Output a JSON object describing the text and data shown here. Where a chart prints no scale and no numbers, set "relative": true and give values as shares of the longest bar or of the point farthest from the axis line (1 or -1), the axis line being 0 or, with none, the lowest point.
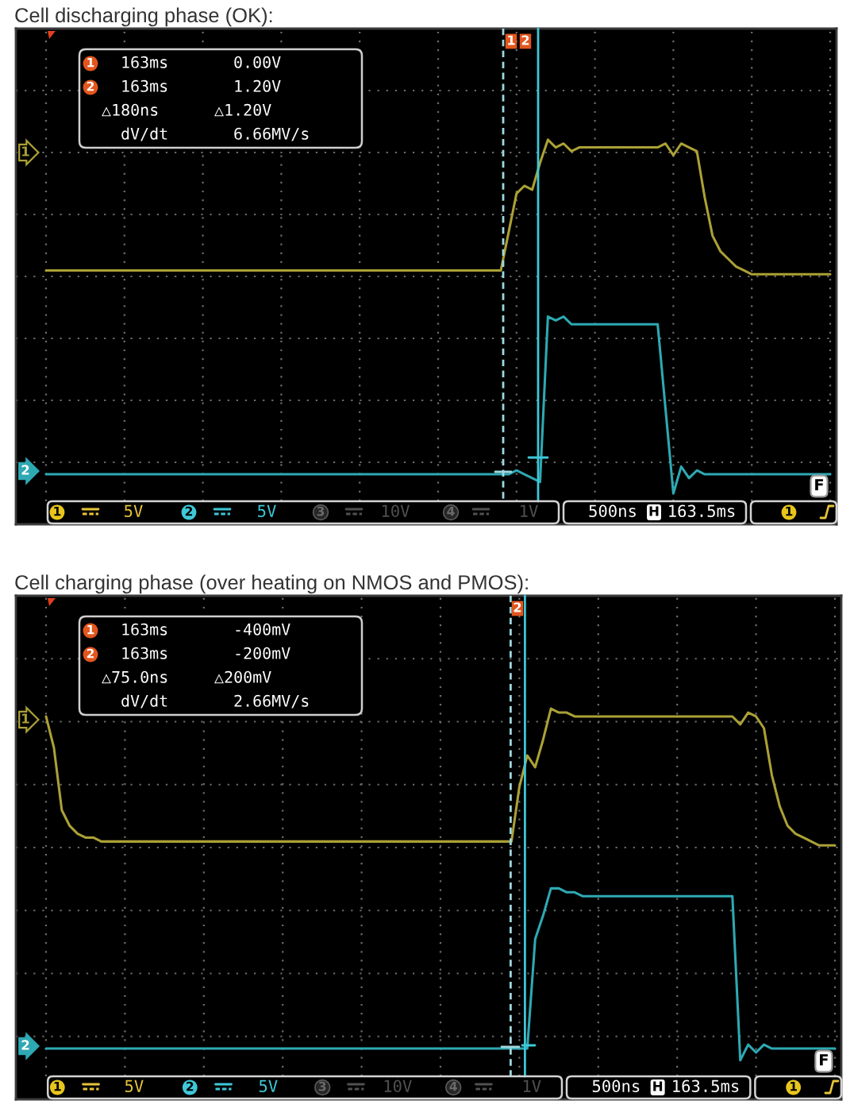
{
  "chart_data": [
    {
      "type": "line",
      "title": "Cell discharging phase (OK):",
      "relative": true,
      "grid": true,
      "categories": [
        null,
        null,
        null,
        null,
        null,
        null,
        null,
        null,
        null,
        null,
        null,
        null,
        null,
        null,
        null,
        null,
        null,
        null,
        null,
        null,
        null,
        null,
        null,
        null,
        null,
        null,
        null,
        null,
        null,
        null,
        null,
        null,
        null,
        null,
        null,
        null,
        null,
        null,
        null,
        null,
        null,
        null,
        null,
        null,
        null,
        null,
        null,
        null,
        null,
        null,
        null,
        null,
        null,
        null,
        null,
        null,
        null,
        null,
        null,
        null,
        null,
        null,
        null,
        null,
        null,
        null,
        null,
        null,
        null,
        null,
        null,
        null,
        null,
        null,
        null,
        null,
        null,
        null,
        null,
        null,
        null,
        null,
        null,
        null,
        null,
        null,
        null,
        null,
        null,
        null,
        null,
        null,
        null,
        null,
        null,
        null,
        null,
        null,
        null,
        null,
        null
      ],
      "series": [
        {
          "color": "#aba136",
          "values": [
            0.66,
            0.66,
            0.66,
            0.66,
            0.66,
            0.66,
            0.66,
            0.66,
            0.66,
            0.66,
            0.66,
            0.66,
            0.66,
            0.66,
            0.66,
            0.66,
            0.66,
            0.66,
            0.66,
            0.66,
            0.66,
            0.66,
            0.66,
            0.66,
            0.66,
            0.66,
            0.66,
            0.66,
            0.66,
            0.66,
            0.66,
            0.66,
            0.66,
            0.66,
            0.66,
            0.66,
            0.66,
            0.66,
            0.66,
            0.66,
            0.66,
            0.66,
            0.66,
            0.66,
            0.66,
            0.66,
            0.66,
            0.66,
            0.66,
            0.66,
            0.66,
            0.66,
            0.66,
            0.66,
            0.66,
            0.66,
            0.66,
            0.66,
            0.66,
            0.76,
            0.86,
            0.88,
            0.87,
            0.94,
            1.0,
            0.98,
            0.99,
            0.97,
            0.98,
            0.98,
            0.98,
            0.98,
            0.98,
            0.98,
            0.98,
            0.98,
            0.98,
            0.98,
            0.98,
            0.99,
            0.96,
            0.99,
            0.98,
            0.97,
            0.85,
            0.75,
            0.71,
            0.69,
            0.67,
            0.66,
            0.65,
            0.65,
            0.65,
            0.65,
            0.65,
            0.65,
            0.65,
            0.65,
            0.65,
            0.65,
            0.65
          ]
        },
        {
          "color": "#2ea9b3",
          "values": [
            0.13,
            0.13,
            0.13,
            0.13,
            0.13,
            0.13,
            0.13,
            0.13,
            0.13,
            0.13,
            0.13,
            0.13,
            0.13,
            0.13,
            0.13,
            0.13,
            0.13,
            0.13,
            0.13,
            0.13,
            0.13,
            0.13,
            0.13,
            0.13,
            0.13,
            0.13,
            0.13,
            0.13,
            0.13,
            0.13,
            0.13,
            0.13,
            0.13,
            0.13,
            0.13,
            0.13,
            0.13,
            0.13,
            0.13,
            0.13,
            0.13,
            0.13,
            0.13,
            0.13,
            0.13,
            0.13,
            0.13,
            0.13,
            0.13,
            0.13,
            0.13,
            0.13,
            0.13,
            0.13,
            0.13,
            0.13,
            0.13,
            0.13,
            0.13,
            0.13,
            0.14,
            0.13,
            0.12,
            0.11,
            0.54,
            0.53,
            0.54,
            0.52,
            0.52,
            0.52,
            0.52,
            0.52,
            0.52,
            0.52,
            0.52,
            0.52,
            0.52,
            0.52,
            0.52,
            0.3,
            0.08,
            0.15,
            0.12,
            0.14,
            0.13,
            0.13,
            0.13,
            0.13,
            0.13,
            0.13,
            0.13,
            0.13,
            0.13,
            0.13,
            0.13,
            0.13,
            0.13,
            0.13,
            0.13,
            0.13,
            0.13
          ]
        }
      ],
      "annotations": [
        "1",
        "2",
        "1",
        "163ms",
        "0.00V",
        "2",
        "163ms",
        "1.20V",
        "△180ns",
        "△1.20V",
        "dV/dt",
        "6.66MV/s",
        "F",
        "1",
        "5V",
        "2",
        "5V",
        "3",
        "10V",
        "4",
        "1V",
        "500ns",
        "H",
        "163.5ms",
        "1",
        "1",
        "2"
      ]
    },
    {
      "type": "line",
      "title": "Cell charging phase (over heating on NMOS and PMOS):",
      "relative": true,
      "grid": true,
      "categories": [
        null,
        null,
        null,
        null,
        null,
        null,
        null,
        null,
        null,
        null,
        null,
        null,
        null,
        null,
        null,
        null,
        null,
        null,
        null,
        null,
        null,
        null,
        null,
        null,
        null,
        null,
        null,
        null,
        null,
        null,
        null,
        null,
        null,
        null,
        null,
        null,
        null,
        null,
        null,
        null,
        null,
        null,
        null,
        null,
        null,
        null,
        null,
        null,
        null,
        null,
        null,
        null,
        null,
        null,
        null,
        null,
        null,
        null,
        null,
        null,
        null,
        null,
        null,
        null,
        null,
        null,
        null,
        null,
        null,
        null,
        null,
        null,
        null,
        null,
        null,
        null,
        null,
        null,
        null,
        null,
        null,
        null,
        null,
        null,
        null,
        null,
        null,
        null,
        null,
        null,
        null,
        null,
        null,
        null,
        null,
        null,
        null,
        null,
        null,
        null,
        null
      ],
      "series": [
        {
          "color": "#aba136",
          "values": [
            0.98,
            0.9,
            0.74,
            0.7,
            0.68,
            0.67,
            0.67,
            0.66,
            0.66,
            0.66,
            0.66,
            0.66,
            0.66,
            0.66,
            0.66,
            0.66,
            0.66,
            0.66,
            0.66,
            0.66,
            0.66,
            0.66,
            0.66,
            0.66,
            0.66,
            0.66,
            0.66,
            0.66,
            0.66,
            0.66,
            0.66,
            0.66,
            0.66,
            0.66,
            0.66,
            0.66,
            0.66,
            0.66,
            0.66,
            0.66,
            0.66,
            0.66,
            0.66,
            0.66,
            0.66,
            0.66,
            0.66,
            0.66,
            0.66,
            0.66,
            0.66,
            0.66,
            0.66,
            0.66,
            0.66,
            0.66,
            0.66,
            0.66,
            0.66,
            0.66,
            0.8,
            0.88,
            0.85,
            0.92,
            1.0,
            0.99,
            0.99,
            0.98,
            0.98,
            0.98,
            0.98,
            0.98,
            0.98,
            0.98,
            0.98,
            0.98,
            0.98,
            0.98,
            0.98,
            0.98,
            0.98,
            0.98,
            0.98,
            0.98,
            0.98,
            0.98,
            0.98,
            0.98,
            0.96,
            0.99,
            0.98,
            0.95,
            0.83,
            0.75,
            0.7,
            0.68,
            0.67,
            0.66,
            0.65,
            0.65,
            0.65
          ]
        },
        {
          "color": "#2ea9b3",
          "values": [
            0.13,
            0.13,
            0.13,
            0.13,
            0.13,
            0.13,
            0.13,
            0.13,
            0.13,
            0.13,
            0.13,
            0.13,
            0.13,
            0.13,
            0.13,
            0.13,
            0.13,
            0.13,
            0.13,
            0.13,
            0.13,
            0.13,
            0.13,
            0.13,
            0.13,
            0.13,
            0.13,
            0.13,
            0.13,
            0.13,
            0.13,
            0.13,
            0.13,
            0.13,
            0.13,
            0.13,
            0.13,
            0.13,
            0.13,
            0.13,
            0.13,
            0.13,
            0.13,
            0.13,
            0.13,
            0.13,
            0.13,
            0.13,
            0.13,
            0.13,
            0.13,
            0.13,
            0.13,
            0.13,
            0.13,
            0.13,
            0.13,
            0.13,
            0.13,
            0.13,
            0.13,
            0.13,
            0.41,
            0.47,
            0.54,
            0.54,
            0.53,
            0.53,
            0.52,
            0.52,
            0.52,
            0.52,
            0.52,
            0.52,
            0.52,
            0.52,
            0.52,
            0.52,
            0.52,
            0.52,
            0.52,
            0.52,
            0.52,
            0.52,
            0.52,
            0.52,
            0.52,
            0.52,
            0.1,
            0.14,
            0.12,
            0.14,
            0.13,
            0.13,
            0.13,
            0.13,
            0.13,
            0.13,
            0.13,
            0.13,
            0.13
          ]
        }
      ],
      "annotations": [
        "1",
        "2",
        "1",
        "163ms",
        "-400mV",
        "2",
        "163ms",
        "-200mV",
        "△75.0ns",
        "△200mV",
        "dV/dt",
        "2.66MV/s",
        "F",
        "1",
        "5V",
        "2",
        "5V",
        "3",
        "10V",
        "4",
        "1V",
        "500ns",
        "H",
        "163.5ms",
        "1",
        "2"
      ]
    }
  ]
}
